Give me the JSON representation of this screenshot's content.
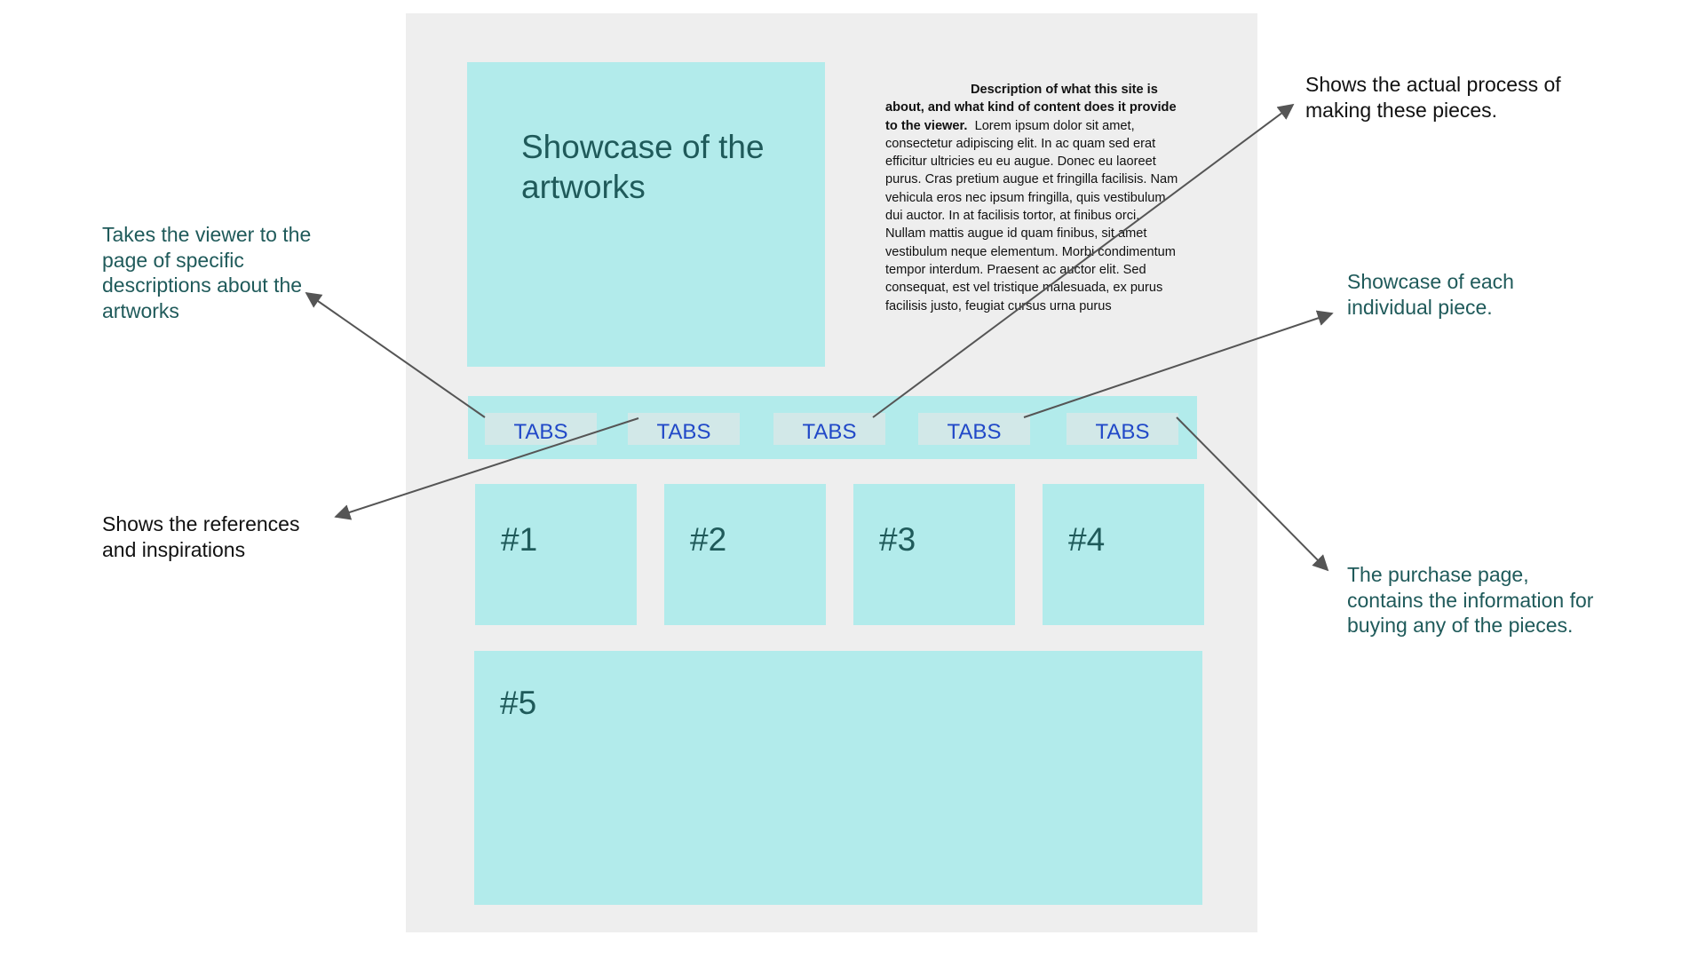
{
  "wireframe": {
    "hero_label": "Showcase of the artworks",
    "description": {
      "bold": "Description of what this site is about, and what kind of content does it provide to the viewer.",
      "body": "Lorem ipsum dolor sit amet, consectetur adipiscing elit. In ac quam sed erat efficitur ultricies eu eu augue. Donec eu laoreet purus. Cras pretium augue et fringilla facilisis. Nam vehicula eros nec ipsum fringilla, quis vestibulum dui auctor. In at facilisis tortor, at finibus orci. Nullam mattis augue id quam finibus, sit amet vestibulum neque elementum. Morbi condimentum tempor interdum. Praesent ac auctor elit. Sed consequat, est vel tristique malesuada, ex purus facilisis justo, feugiat cursus urna purus"
    },
    "tabs": [
      "TABS",
      "TABS",
      "TABS",
      "TABS",
      "TABS"
    ],
    "pieces": [
      "#1",
      "#2",
      "#3",
      "#4",
      "#5"
    ],
    "colors": {
      "panel": "#eeeeee",
      "block": "#b2ebeb",
      "tab": "#d2e8e8",
      "tab_text": "#2149c8",
      "heading_text": "#1f5a5a",
      "arrow": "#555555"
    }
  },
  "annotations": {
    "tab1": "Takes the viewer to the page of specific descriptions about the artworks",
    "tab2": "Shows the references and inspirations",
    "tab3": "Shows the actual process of making these pieces.",
    "tab4": "Showcase of each individual piece.",
    "tab5": "The purchase page, contains the information for buying any of the pieces."
  }
}
